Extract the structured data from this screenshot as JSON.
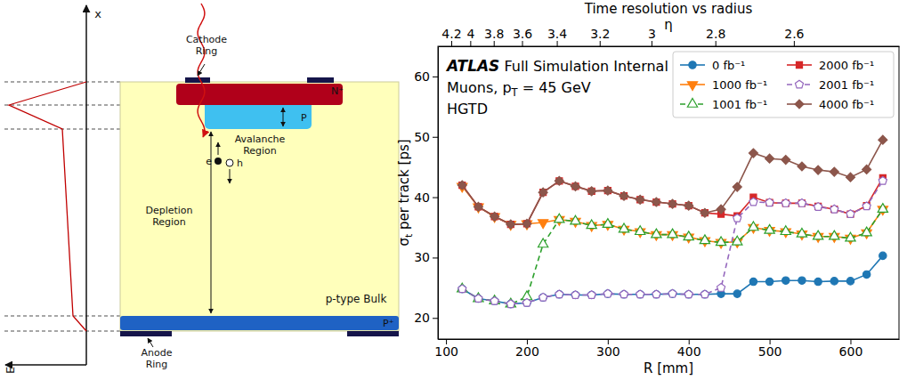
{
  "diagram": {
    "cathode": "Cathode Ring",
    "n_plus": "N⁺",
    "p_layer": "P",
    "avalanche": "Avalanche Region",
    "electron": "e",
    "hole": "h",
    "depletion": "Depletion Region",
    "bulk": "p-type Bulk",
    "p_plus": "P⁺",
    "anode": "Anode Ring",
    "x_axis": "x",
    "e_axis": "E"
  },
  "chart_data": {
    "type": "line",
    "title": "Time resolution vs radius",
    "x2label": "η",
    "x2ticks": [
      4.2,
      4,
      3.8,
      3.6,
      3.4,
      3.2,
      3,
      2.8,
      2.6
    ],
    "x2tick_positions": [
      106.5,
      130,
      159,
      194,
      237,
      290,
      354,
      433,
      530
    ],
    "xlabel": "R [mm]",
    "ylabel": "σt per track [ps]",
    "annotations": [
      "ATLAS Full Simulation Internal",
      "Muons, pT = 45 GeV",
      "HGTD"
    ],
    "x": [
      120,
      140,
      160,
      180,
      200,
      220,
      240,
      260,
      280,
      300,
      320,
      340,
      360,
      380,
      400,
      420,
      440,
      460,
      480,
      500,
      520,
      540,
      560,
      580,
      600,
      620,
      640
    ],
    "xlim": [
      90,
      660
    ],
    "xticks": [
      100,
      200,
      300,
      400,
      500,
      600
    ],
    "ylim": [
      16.5,
      65
    ],
    "yticks": [
      20,
      30,
      40,
      50,
      60
    ],
    "legend": "upper right",
    "series": [
      {
        "name": "0 fb⁻¹",
        "color": "#1f77b4",
        "marker": "circle",
        "line_style": "solid",
        "values": [
          24.8,
          23.2,
          22.8,
          22.3,
          22.5,
          23.4,
          23.9,
          23.8,
          23.8,
          24.0,
          23.9,
          23.9,
          23.9,
          24.0,
          23.9,
          23.9,
          24.0,
          24.0,
          26.0,
          26.0,
          26.2,
          26.2,
          26.0,
          26.1,
          26.1,
          27.2,
          30.3
        ]
      },
      {
        "name": "1000 fb⁻¹",
        "color": "#ff7f0e",
        "marker": "triangle-down",
        "line_style": "solid",
        "values": [
          41.8,
          38.4,
          36.8,
          35.5,
          35.6,
          35.8,
          36.3,
          36.0,
          35.3,
          35.5,
          34.7,
          34.3,
          33.8,
          33.8,
          33.4,
          32.8,
          32.5,
          32.6,
          35.0,
          34.5,
          34.3,
          33.9,
          33.5,
          33.5,
          33.2,
          34.1,
          38.0
        ]
      },
      {
        "name": "1001 fb⁻¹",
        "color": "#2ca02c",
        "marker": "triangle-up-open",
        "line_style": "dashed",
        "values": [
          24.8,
          23.2,
          22.8,
          22.3,
          23.5,
          32.2,
          36.3,
          36.0,
          35.3,
          35.5,
          34.7,
          34.3,
          33.8,
          33.8,
          33.4,
          32.8,
          32.5,
          32.6,
          35.0,
          34.5,
          34.3,
          33.9,
          33.5,
          33.5,
          33.2,
          34.1,
          38.0
        ]
      },
      {
        "name": "2000 fb⁻¹",
        "color": "#d62728",
        "marker": "square",
        "line_style": "solid",
        "values": [
          42.0,
          38.4,
          36.8,
          35.5,
          35.6,
          40.8,
          42.7,
          41.8,
          41.0,
          41.1,
          40.2,
          39.6,
          39.2,
          38.9,
          38.6,
          37.4,
          37.2,
          36.9,
          40.0,
          39.1,
          39.0,
          39.0,
          38.5,
          38.0,
          37.2,
          38.6,
          43.2
        ]
      },
      {
        "name": "2001 fb⁻¹",
        "color": "#9467bd",
        "marker": "pentagon-open",
        "line_style": "dashed",
        "values": [
          24.8,
          23.2,
          22.8,
          22.3,
          22.5,
          23.4,
          23.9,
          23.8,
          23.8,
          24.0,
          23.9,
          23.9,
          23.9,
          24.0,
          23.9,
          23.9,
          25.0,
          36.5,
          39.2,
          39.1,
          39.0,
          39.0,
          38.4,
          38.0,
          37.2,
          38.5,
          42.7
        ]
      },
      {
        "name": "4000 fb⁻¹",
        "color": "#8c564b",
        "marker": "diamond",
        "line_style": "solid",
        "values": [
          42.0,
          38.4,
          36.8,
          35.5,
          35.6,
          40.8,
          42.7,
          41.8,
          41.0,
          41.1,
          40.2,
          39.6,
          39.2,
          38.9,
          38.6,
          37.4,
          38.0,
          41.7,
          47.3,
          46.4,
          46.2,
          45.1,
          44.5,
          44.2,
          43.3,
          44.6,
          49.5
        ]
      }
    ]
  }
}
